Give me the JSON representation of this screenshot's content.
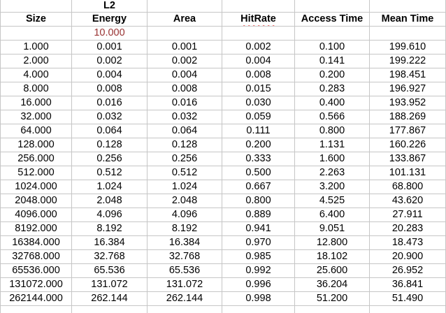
{
  "colors": {
    "grid": "#c6c6c6",
    "param_red": "#993333",
    "spellcheck_squiggle": "#ef2929",
    "text": "#000000"
  },
  "chart_data": {
    "type": "table",
    "group_header": {
      "text": "L2",
      "over_column": "Energy"
    },
    "columns": [
      "Size",
      "Energy",
      "Area",
      "HitRate",
      "Access Time",
      "Mean Time"
    ],
    "param_row": {
      "column": "Energy",
      "value": "10.000"
    },
    "rows": [
      [
        "1.000",
        "0.001",
        "0.001",
        "0.002",
        "0.100",
        "199.610"
      ],
      [
        "2.000",
        "0.002",
        "0.002",
        "0.004",
        "0.141",
        "199.222"
      ],
      [
        "4.000",
        "0.004",
        "0.004",
        "0.008",
        "0.200",
        "198.451"
      ],
      [
        "8.000",
        "0.008",
        "0.008",
        "0.015",
        "0.283",
        "196.927"
      ],
      [
        "16.000",
        "0.016",
        "0.016",
        "0.030",
        "0.400",
        "193.952"
      ],
      [
        "32.000",
        "0.032",
        "0.032",
        "0.059",
        "0.566",
        "188.269"
      ],
      [
        "64.000",
        "0.064",
        "0.064",
        "0.111",
        "0.800",
        "177.867"
      ],
      [
        "128.000",
        "0.128",
        "0.128",
        "0.200",
        "1.131",
        "160.226"
      ],
      [
        "256.000",
        "0.256",
        "0.256",
        "0.333",
        "1.600",
        "133.867"
      ],
      [
        "512.000",
        "0.512",
        "0.512",
        "0.500",
        "2.263",
        "101.131"
      ],
      [
        "1024.000",
        "1.024",
        "1.024",
        "0.667",
        "3.200",
        "68.800"
      ],
      [
        "2048.000",
        "2.048",
        "2.048",
        "0.800",
        "4.525",
        "43.620"
      ],
      [
        "4096.000",
        "4.096",
        "4.096",
        "0.889",
        "6.400",
        "27.911"
      ],
      [
        "8192.000",
        "8.192",
        "8.192",
        "0.941",
        "9.051",
        "20.283"
      ],
      [
        "16384.000",
        "16.384",
        "16.384",
        "0.970",
        "12.800",
        "18.473"
      ],
      [
        "32768.000",
        "32.768",
        "32.768",
        "0.985",
        "18.102",
        "20.900"
      ],
      [
        "65536.000",
        "65.536",
        "65.536",
        "0.992",
        "25.600",
        "26.952"
      ],
      [
        "131072.000",
        "131.072",
        "131.072",
        "0.996",
        "36.204",
        "36.841"
      ],
      [
        "262144.000",
        "262.144",
        "262.144",
        "0.998",
        "51.200",
        "51.490"
      ]
    ]
  }
}
